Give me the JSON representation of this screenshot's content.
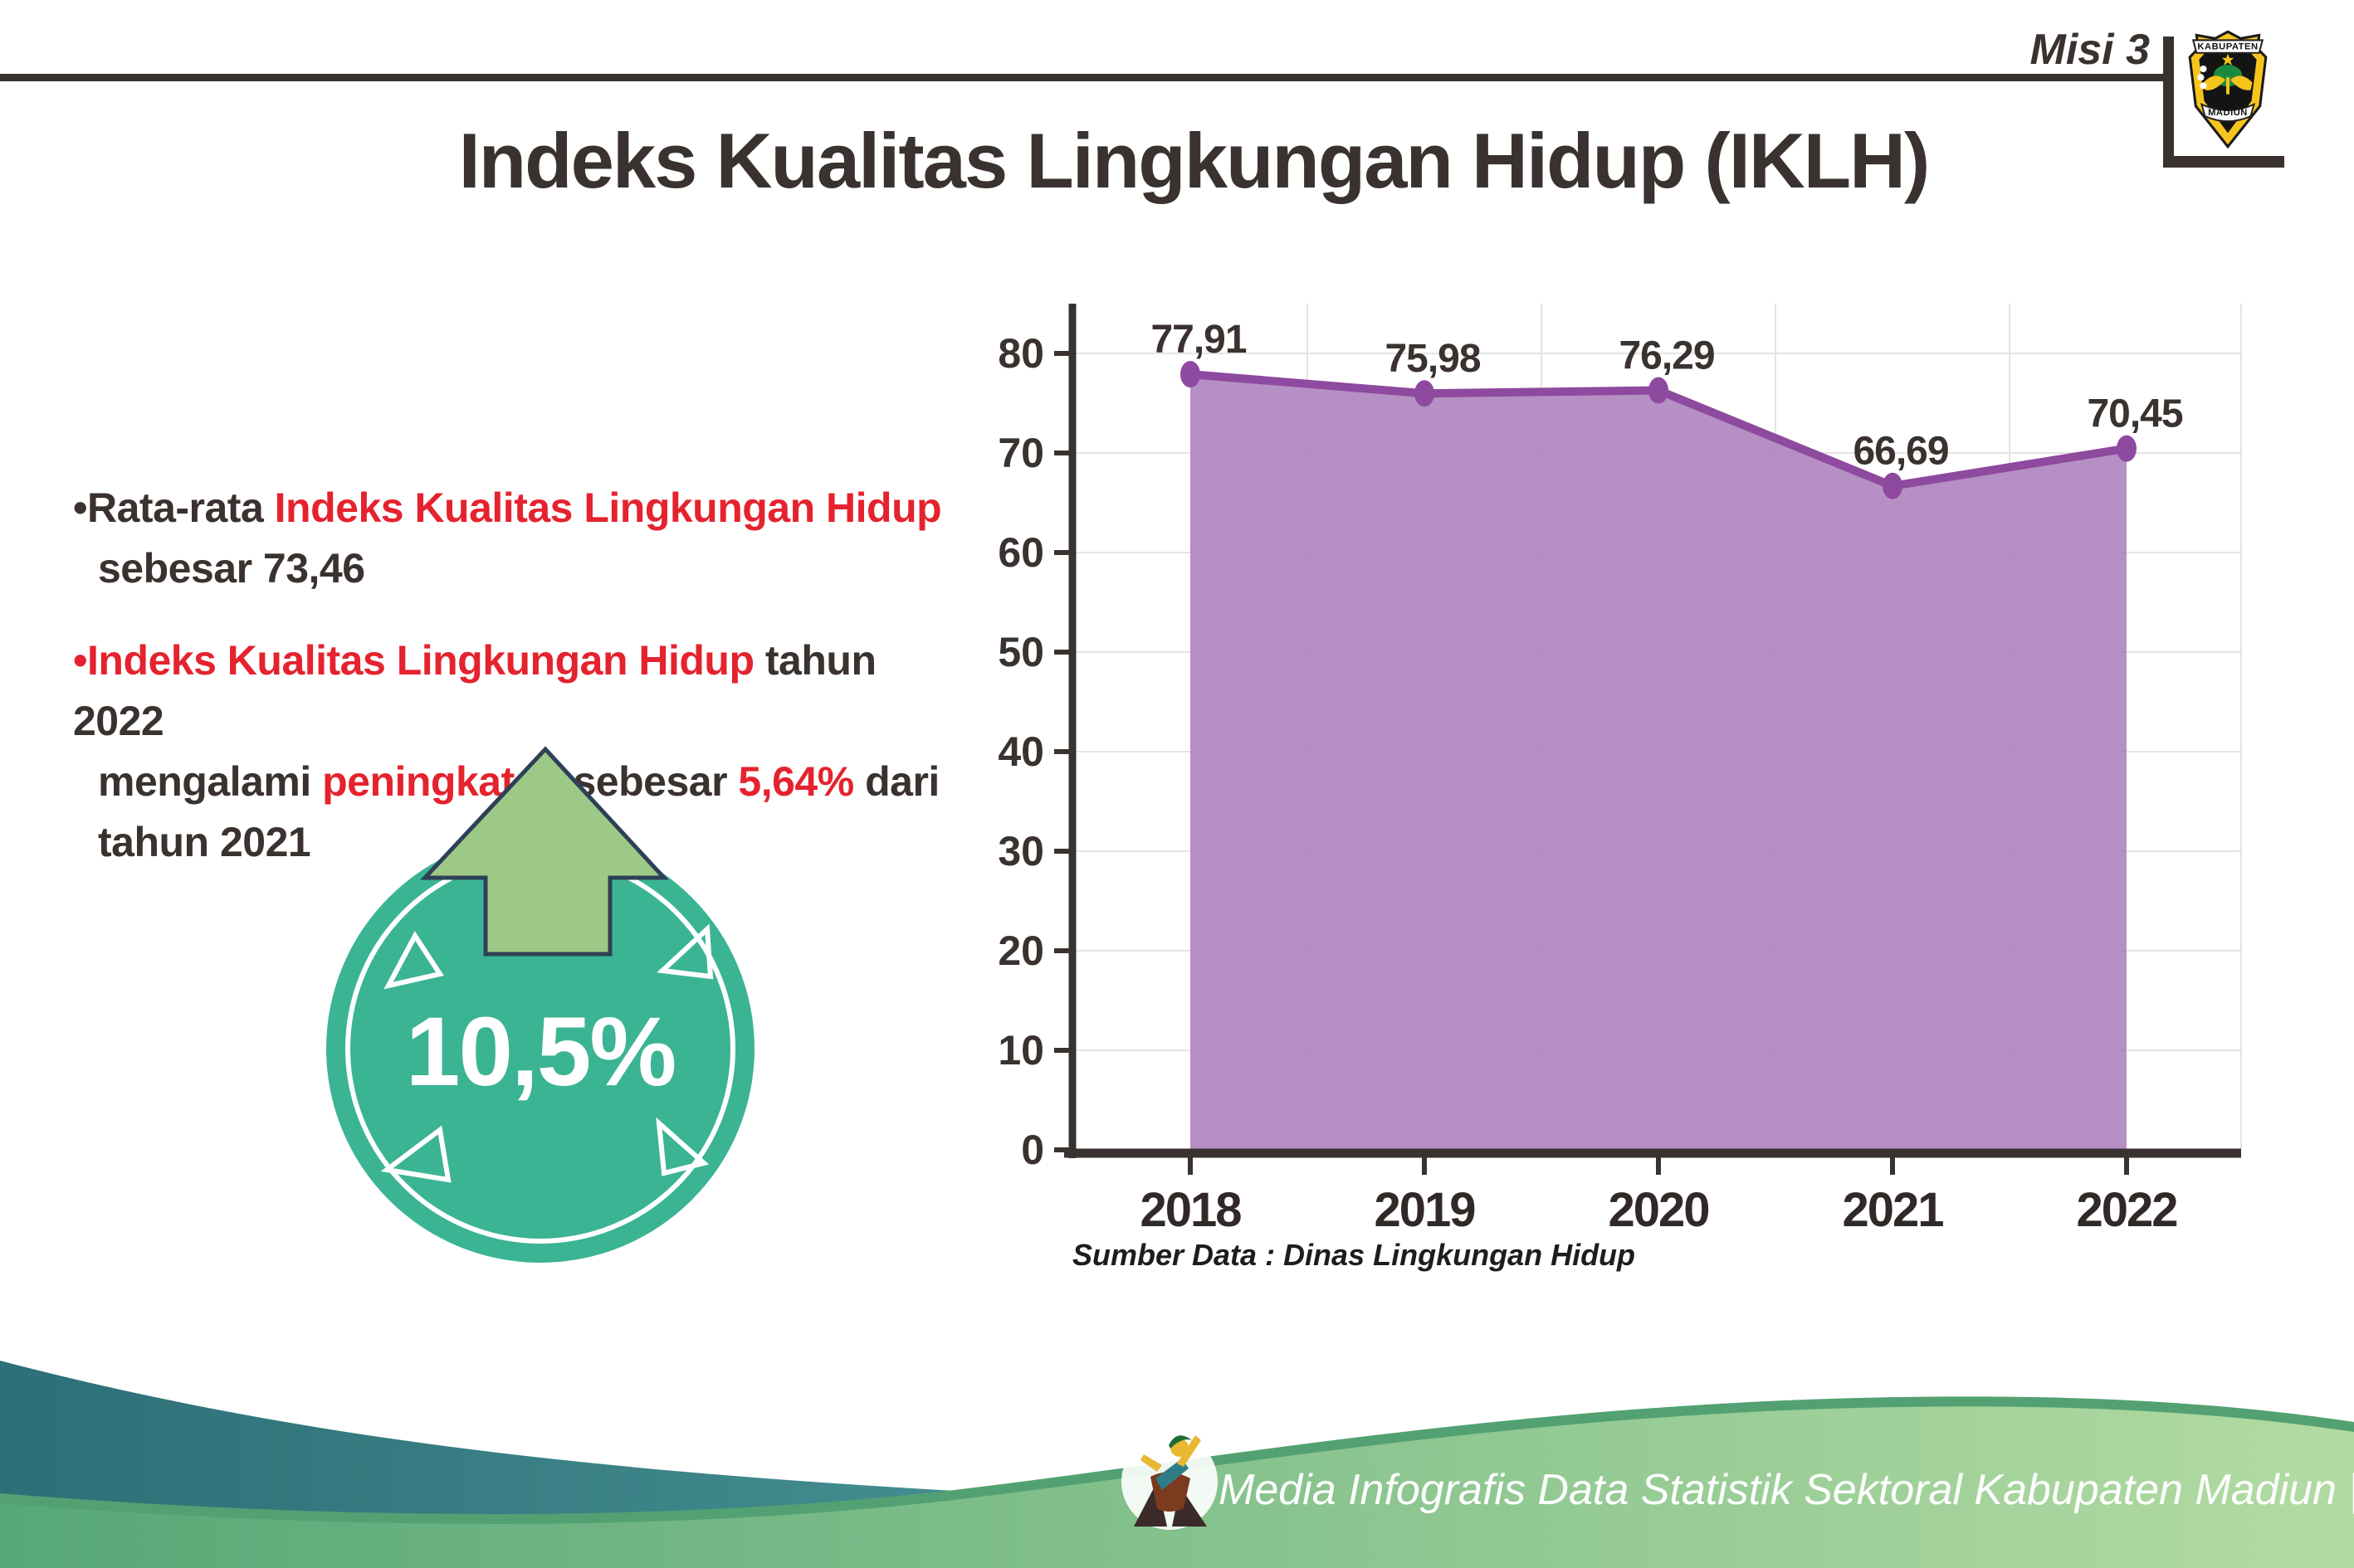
{
  "header": {
    "misi": "Misi 3",
    "title": "Indeks Kualitas Lingkungan Hidup (IKLH)"
  },
  "logo": {
    "top_text": "KABUPATEN",
    "bottom_text": "MADIUN"
  },
  "bullets": [
    {
      "lines": [
        [
          {
            "t": "•Rata-rata ",
            "c": "dark"
          },
          {
            "t": "Indeks Kualitas Lingkungan Hidup",
            "c": "red"
          }
        ],
        [
          {
            "t": "sebesar 73,46",
            "c": "dark"
          }
        ]
      ]
    },
    {
      "lines": [
        [
          {
            "t": "•Indeks Kualitas Lingkungan Hidup",
            "c": "red"
          },
          {
            "t": " tahun 2022",
            "c": "dark"
          }
        ],
        [
          {
            "t": "mengalami ",
            "c": "dark"
          },
          {
            "t": "peningkatan",
            "c": "red"
          },
          {
            "t": " sebesar ",
            "c": "dark"
          },
          {
            "t": "5,64%",
            "c": "red"
          },
          {
            "t": " dari",
            "c": "dark"
          }
        ],
        [
          {
            "t": "tahun 2021",
            "c": "dark"
          }
        ]
      ]
    }
  ],
  "badge": {
    "value": "10,5%",
    "circle_color": "#3bb493",
    "ring_color": "#ffffff",
    "arrow_color": "#9dc987",
    "arrow_outline": "#2e4057",
    "text_color": "#ffffff"
  },
  "chart_data": {
    "type": "area",
    "title": "",
    "xlabel": "",
    "ylabel": "",
    "categories": [
      "2018",
      "2019",
      "2020",
      "2021",
      "2022"
    ],
    "values": [
      77.91,
      75.98,
      76.29,
      66.69,
      70.45
    ],
    "value_labels": [
      "77,91",
      "75,98",
      "76,29",
      "66,69",
      "70,45"
    ],
    "ylim": [
      0,
      80
    ],
    "ytick_step": 10,
    "grid": true,
    "legend_position": "none",
    "source": "Sumber Data : Dinas Lingkungan Hidup",
    "line_color": "#8e4a9e",
    "fill_color": "#ac7fbc",
    "marker_color": "#8e4a9e",
    "axis_color": "#3a322f",
    "grid_color": "#e4e4e4",
    "label_color": "#3a322f"
  },
  "footer": {
    "credit": "Media Infografis Data Statistik Sektoral Kabupaten Madiun |",
    "teal_dark": "#2d6f77",
    "teal_light": "#509d9e",
    "green_dark": "#57a777",
    "green_light": "#b2dba2",
    "rim_color": "#53a173",
    "text_color": "#ffffff"
  },
  "colors": {
    "dark_text": "#3a322f",
    "accent_red": "#e4232e"
  }
}
